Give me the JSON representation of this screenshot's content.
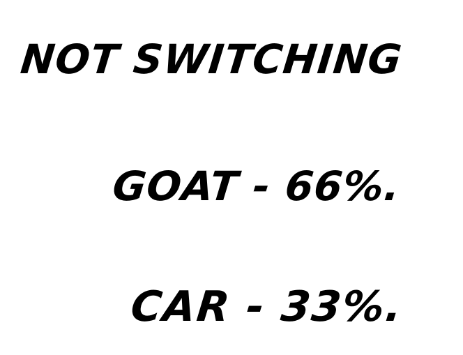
{
  "note": {
    "heading": "Not Switching",
    "rows": [
      {
        "text": "Goat - 66%."
      },
      {
        "text": "Car - 33%."
      }
    ]
  }
}
